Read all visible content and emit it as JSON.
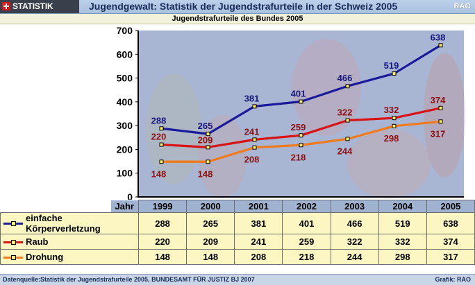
{
  "header": {
    "logo_text": "STATISTIK SCHWEIZ",
    "title": "Jugendgewalt: Statistik der Jugendstrafurteile in der Schweiz 2005",
    "badge": "RAO"
  },
  "subtitle": "Jugendstrafurteile des Bundes 2005",
  "chart_data": {
    "type": "line",
    "title": "Jugendstrafurteile des Bundes 2005",
    "categories": [
      "1999",
      "2000",
      "2001",
      "2002",
      "2003",
      "2004",
      "2005"
    ],
    "ylim": [
      0,
      700
    ],
    "yticks": [
      0,
      100,
      200,
      300,
      400,
      500,
      600,
      700
    ],
    "grid": false,
    "series": [
      {
        "name": "einfache Körperverletzung",
        "values": [
          288,
          265,
          381,
          401,
          466,
          519,
          638
        ],
        "color": "#1a1a9a",
        "label_color": "#16167e"
      },
      {
        "name": "Raub",
        "values": [
          220,
          209,
          241,
          259,
          322,
          332,
          374
        ],
        "color": "#d81313",
        "label_color": "#8e1010"
      },
      {
        "name": "Drohung",
        "values": [
          148,
          148,
          208,
          218,
          244,
          298,
          317
        ],
        "color": "#f07a1c",
        "label_color": "#8e1010"
      }
    ],
    "background_colors": {
      "plot": "#a8b5d3",
      "marker_fill": "#ffef6a"
    }
  },
  "table": {
    "header_label": "Jahr",
    "years": [
      "1999",
      "2000",
      "2001",
      "2002",
      "2003",
      "2004",
      "2005"
    ],
    "rows": [
      {
        "label": "einfache Körperverletzung",
        "values": [
          "288",
          "265",
          "381",
          "401",
          "466",
          "519",
          "638"
        ],
        "color": "#1a1a9a"
      },
      {
        "label": "Raub",
        "values": [
          "220",
          "209",
          "241",
          "259",
          "322",
          "332",
          "374"
        ],
        "color": "#d81313"
      },
      {
        "label": "Drohung",
        "values": [
          "148",
          "148",
          "208",
          "218",
          "244",
          "298",
          "317"
        ],
        "color": "#f07a1c"
      }
    ]
  },
  "footer": {
    "source": "Datenquelle:Statistik der Jugendstrafurteile 2005, BUNDESAMT FÜR JUSTIZ BJ 2007",
    "credit": "Grafik: RAO"
  }
}
